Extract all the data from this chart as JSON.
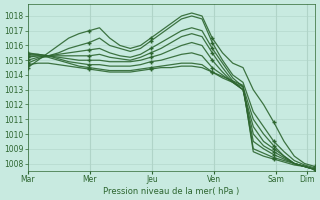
{
  "xlabel": "Pression niveau de la mer( hPa )",
  "bg_color": "#c8eae0",
  "grid_color": "#b0d4c8",
  "line_color": "#2d6630",
  "ylim": [
    1007.5,
    1018.8
  ],
  "yticks": [
    1008,
    1009,
    1010,
    1011,
    1012,
    1013,
    1014,
    1015,
    1016,
    1017,
    1018
  ],
  "xtick_labels": [
    "Mar",
    "Mer",
    "Jeu",
    "Ven",
    "Sam",
    "Dim"
  ],
  "xtick_positions": [
    0,
    48,
    96,
    144,
    192,
    216
  ],
  "xlim": [
    0,
    222
  ],
  "marker": "+",
  "marker_size": 3.5,
  "linewidth": 0.9,
  "series": [
    [
      1014.5,
      1015.0,
      1015.5,
      1016.0,
      1016.5,
      1016.8,
      1017.0,
      1017.2,
      1016.5,
      1016.0,
      1015.8,
      1016.0,
      1016.5,
      1017.0,
      1017.5,
      1018.0,
      1018.2,
      1018.0,
      1016.5,
      1015.5,
      1014.8,
      1014.5,
      1013.0,
      1012.0,
      1010.8,
      1009.5,
      1008.5,
      1008.0,
      1007.8
    ],
    [
      1014.8,
      1015.1,
      1015.3,
      1015.5,
      1015.8,
      1016.0,
      1016.2,
      1016.5,
      1016.0,
      1015.8,
      1015.6,
      1015.8,
      1016.3,
      1016.8,
      1017.3,
      1017.8,
      1018.0,
      1017.8,
      1016.2,
      1015.0,
      1014.0,
      1013.5,
      1011.5,
      1010.5,
      1009.5,
      1008.8,
      1008.2,
      1007.9,
      1007.7
    ],
    [
      1015.0,
      1015.2,
      1015.3,
      1015.4,
      1015.5,
      1015.6,
      1015.7,
      1015.8,
      1015.5,
      1015.3,
      1015.2,
      1015.4,
      1015.8,
      1016.2,
      1016.6,
      1017.0,
      1017.2,
      1017.0,
      1015.8,
      1014.8,
      1013.8,
      1013.2,
      1011.0,
      1010.0,
      1009.2,
      1008.5,
      1008.0,
      1007.8,
      1007.6
    ],
    [
      1015.2,
      1015.3,
      1015.3,
      1015.3,
      1015.3,
      1015.3,
      1015.3,
      1015.4,
      1015.2,
      1015.1,
      1015.0,
      1015.2,
      1015.5,
      1015.8,
      1016.2,
      1016.6,
      1016.8,
      1016.6,
      1015.5,
      1014.5,
      1013.6,
      1013.0,
      1010.5,
      1009.5,
      1009.0,
      1008.5,
      1008.0,
      1007.8,
      1007.6
    ],
    [
      1015.4,
      1015.4,
      1015.3,
      1015.2,
      1015.1,
      1015.0,
      1015.0,
      1015.0,
      1014.9,
      1014.9,
      1014.9,
      1015.0,
      1015.2,
      1015.4,
      1015.7,
      1016.0,
      1016.2,
      1016.0,
      1015.0,
      1014.2,
      1013.5,
      1013.0,
      1010.0,
      1009.2,
      1008.8,
      1008.4,
      1008.0,
      1007.8,
      1007.6
    ],
    [
      1015.5,
      1015.4,
      1015.3,
      1015.1,
      1014.9,
      1014.8,
      1014.7,
      1014.7,
      1014.6,
      1014.6,
      1014.6,
      1014.7,
      1014.9,
      1015.0,
      1015.2,
      1015.4,
      1015.5,
      1015.3,
      1014.5,
      1014.0,
      1013.5,
      1013.0,
      1009.5,
      1009.0,
      1008.6,
      1008.3,
      1008.0,
      1007.8,
      1007.6
    ],
    [
      1015.3,
      1015.3,
      1015.2,
      1015.0,
      1014.8,
      1014.6,
      1014.5,
      1014.4,
      1014.3,
      1014.3,
      1014.3,
      1014.4,
      1014.5,
      1014.6,
      1014.7,
      1014.8,
      1014.8,
      1014.7,
      1014.2,
      1013.8,
      1013.5,
      1013.2,
      1009.0,
      1008.7,
      1008.4,
      1008.2,
      1008.0,
      1007.8,
      1007.6
    ],
    [
      1014.7,
      1014.8,
      1014.8,
      1014.7,
      1014.6,
      1014.5,
      1014.4,
      1014.3,
      1014.2,
      1014.2,
      1014.2,
      1014.3,
      1014.4,
      1014.5,
      1014.5,
      1014.6,
      1014.6,
      1014.5,
      1014.2,
      1013.9,
      1013.6,
      1013.3,
      1008.8,
      1008.5,
      1008.3,
      1008.1,
      1007.9,
      1007.8,
      1007.6
    ]
  ],
  "marker_indices": [
    0,
    6,
    12,
    18,
    24,
    28
  ]
}
